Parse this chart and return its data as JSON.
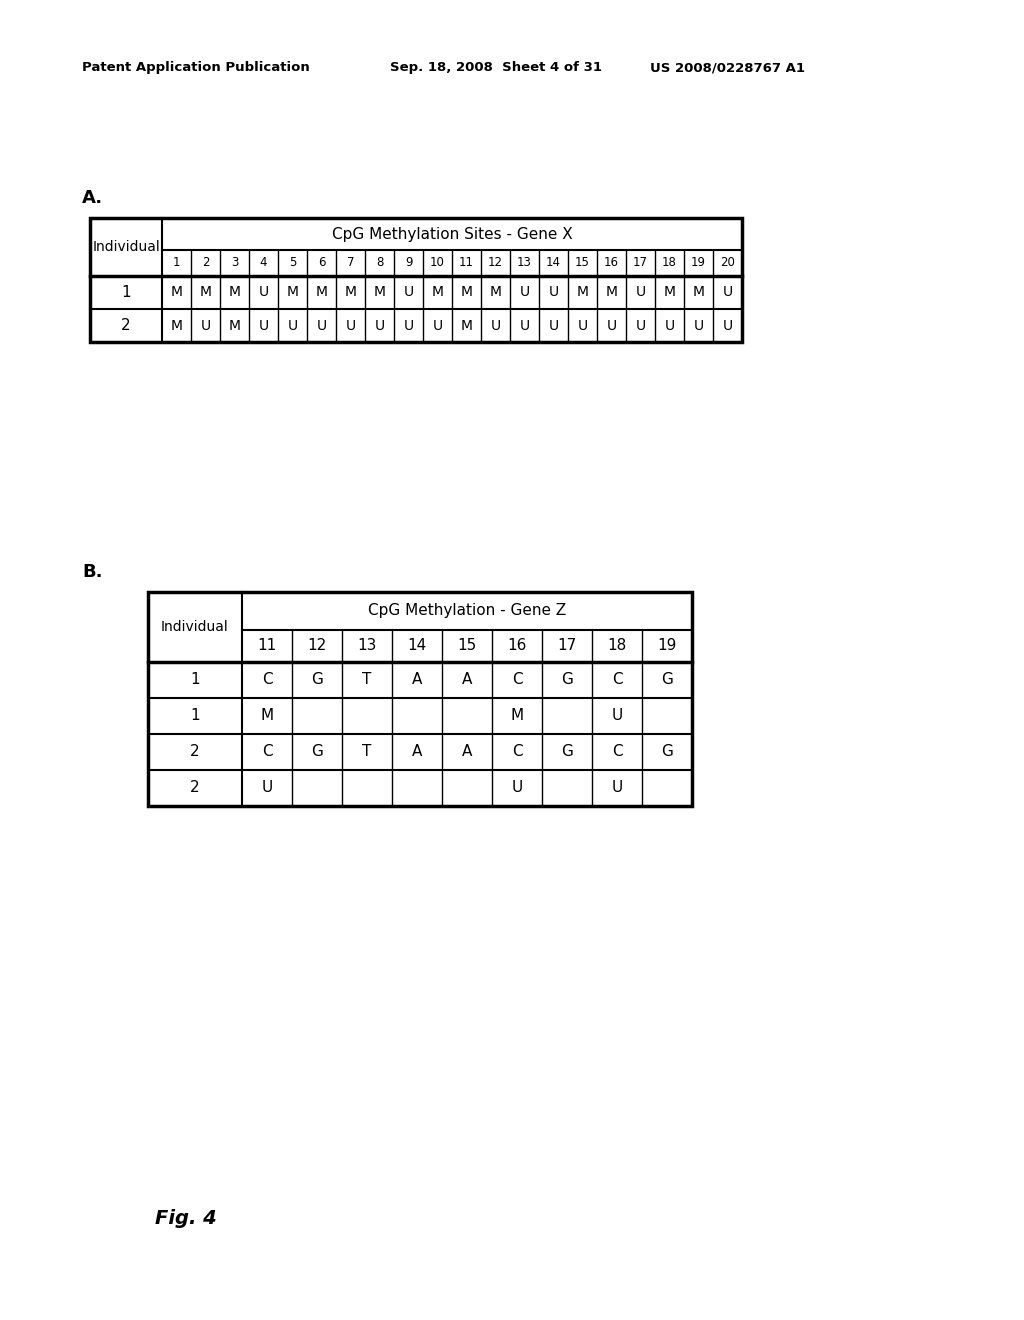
{
  "header_left": "Patent Application Publication",
  "header_mid": "Sep. 18, 2008  Sheet 4 of 31",
  "header_right": "US 2008/0228767 A1",
  "fig_label": "Fig. 4",
  "section_a_label": "A.",
  "section_b_label": "B.",
  "table_a": {
    "title": "CpG Methylation Sites - Gene X",
    "col_header_label": "Individual",
    "col_numbers": [
      "1",
      "2",
      "3",
      "4",
      "5",
      "6",
      "7",
      "8",
      "9",
      "10",
      "11",
      "12",
      "13",
      "14",
      "15",
      "16",
      "17",
      "18",
      "19",
      "20"
    ],
    "rows": [
      {
        "individual": "1",
        "values": [
          "M",
          "M",
          "M",
          "U",
          "M",
          "M",
          "M",
          "M",
          "U",
          "M",
          "M",
          "M",
          "U",
          "U",
          "M",
          "M",
          "U",
          "M",
          "M",
          "U"
        ]
      },
      {
        "individual": "2",
        "values": [
          "M",
          "U",
          "M",
          "U",
          "U",
          "U",
          "U",
          "U",
          "U",
          "U",
          "M",
          "U",
          "U",
          "U",
          "U",
          "U",
          "U",
          "U",
          "U",
          "U"
        ]
      }
    ]
  },
  "table_b": {
    "title": "CpG Methylation - Gene Z",
    "col_header_label": "Individual",
    "col_numbers": [
      "11",
      "12",
      "13",
      "14",
      "15",
      "16",
      "17",
      "18",
      "19"
    ],
    "rows": [
      {
        "individual": "1",
        "values": [
          "C",
          "G",
          "T",
          "A",
          "A",
          "C",
          "G",
          "C",
          "G"
        ]
      },
      {
        "individual": "1",
        "values": [
          "M",
          "",
          "",
          "",
          "",
          "M",
          "",
          "U",
          ""
        ]
      },
      {
        "individual": "2",
        "values": [
          "C",
          "G",
          "T",
          "A",
          "A",
          "C",
          "G",
          "C",
          "G"
        ]
      },
      {
        "individual": "2",
        "values": [
          "U",
          "",
          "",
          "",
          "",
          "U",
          "",
          "U",
          ""
        ]
      }
    ]
  },
  "bg_color": "#ffffff",
  "text_color": "#000000"
}
